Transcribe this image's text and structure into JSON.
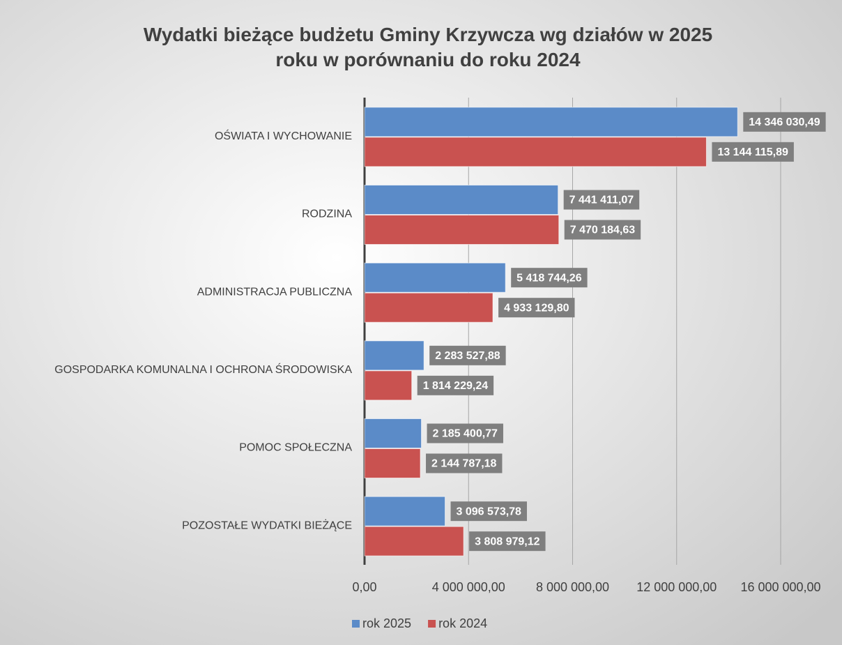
{
  "chart_data": {
    "type": "hbar",
    "title": "Wydatki bieżące budżetu Gminy Krzywcza wg działów w 2025 roku w porównaniu do roku 2024",
    "categories": [
      "OŚWIATA I WYCHOWANIE",
      "RODZINA",
      "ADMINISTRACJA PUBLICZNA",
      "GOSPODARKA KOMUNALNA I OCHRONA ŚRODOWISKA",
      "POMOC SPOŁECZNA",
      "POZOSTAŁE WYDATKI BIEŻĄCE"
    ],
    "series": [
      {
        "name": "rok 2025",
        "color": "#5b8bc8",
        "values": [
          14346030.49,
          7441411.07,
          5418744.26,
          2283527.88,
          2185400.77,
          3096573.78
        ],
        "value_labels": [
          "14 346 030,49",
          "7 441 411,07",
          "5 418 744,26",
          "2 283 527,88",
          "2 185 400,77",
          "3 096 573,78"
        ]
      },
      {
        "name": "rok 2024",
        "color": "#c95250",
        "values": [
          13144115.89,
          7470184.63,
          4933129.8,
          1814229.24,
          2144787.18,
          3808979.12
        ],
        "value_labels": [
          "13 144 115,89",
          "7 470 184,63",
          "4 933 129,80",
          "1 814 229,24",
          "2 144 787,18",
          "3 808 979,12"
        ]
      }
    ],
    "xlim": [
      0,
      16000000
    ],
    "xticks": [
      {
        "value": 0,
        "label": "0,00"
      },
      {
        "value": 4000000,
        "label": "4 000 000,00"
      },
      {
        "value": 8000000,
        "label": "8 000 000,00"
      },
      {
        "value": 12000000,
        "label": "12 000 000,00"
      },
      {
        "value": 16000000,
        "label": "16 000 000,00"
      }
    ],
    "grid": true,
    "legend": "bottom"
  }
}
